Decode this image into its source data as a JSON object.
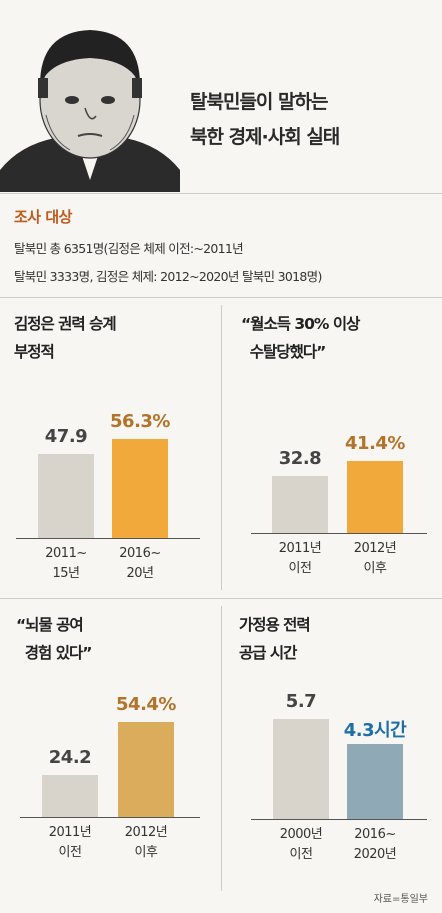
{
  "header": {
    "title_line1": "탈북민들이 말하는",
    "title_line2": "북한 경제·사회 실태"
  },
  "survey": {
    "heading": "조사 대상",
    "line1": "탈북민 총 6351명(김정은 체제 이전:~2011년",
    "line2": "탈북민 3333명, 김정은 체제: 2012~2020년 탈북민 3018명)"
  },
  "source": "자료=통일부",
  "colors": {
    "old": "#d8d4cb",
    "orange": "#f0a93a",
    "blue": "#8fa9b6",
    "orange_text": "#b4732a",
    "blue_text": "#1e6fa8",
    "tan": "#dbac5c"
  },
  "chart_data": [
    {
      "type": "bar",
      "title": "김정은 권력 승계\n부정적",
      "categories": [
        "2011~\n15년",
        "2016~\n20년"
      ],
      "values": [
        47.9,
        56.3
      ],
      "labels": [
        "47.9",
        "56.3%"
      ],
      "ylim": [
        0,
        80
      ]
    },
    {
      "type": "bar",
      "title": "“월소득 30% 이상\n  수탈당했다”",
      "categories": [
        "2011년\n이전",
        "2012년\n이후"
      ],
      "values": [
        32.8,
        41.4
      ],
      "labels": [
        "32.8",
        "41.4%"
      ],
      "ylim": [
        0,
        80
      ]
    },
    {
      "type": "bar",
      "title": "“뇌물 공여\n  경험 있다”",
      "categories": [
        "2011년\n이전",
        "2012년\n이후"
      ],
      "values": [
        24.2,
        54.4
      ],
      "labels": [
        "24.2",
        "54.4%"
      ],
      "ylim": [
        0,
        80
      ]
    },
    {
      "type": "bar",
      "title": "가정용 전력\n공급 시간",
      "categories": [
        "2000년\n이전",
        "2016~\n2020년"
      ],
      "values": [
        5.7,
        4.3
      ],
      "labels": [
        "5.7",
        "4.3시간"
      ],
      "ylim": [
        0,
        8
      ]
    }
  ]
}
